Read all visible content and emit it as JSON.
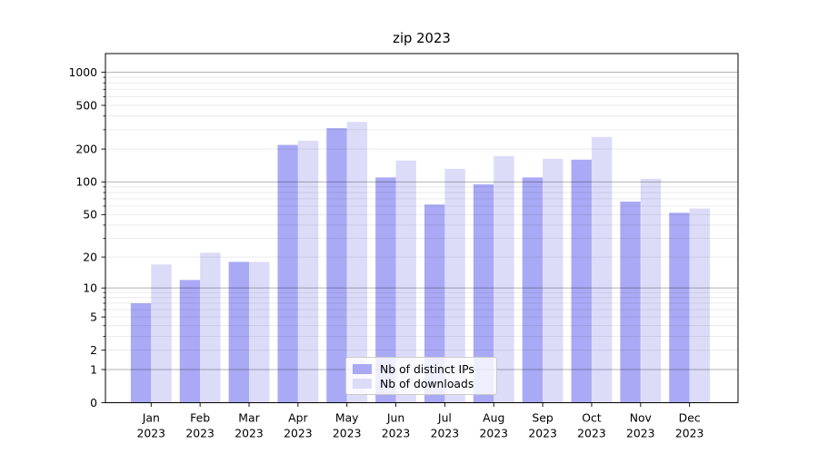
{
  "chart_data": {
    "type": "bar",
    "title": "zip 2023",
    "categories": [
      [
        "Jan",
        "2023"
      ],
      [
        "Feb",
        "2023"
      ],
      [
        "Mar",
        "2023"
      ],
      [
        "Apr",
        "2023"
      ],
      [
        "May",
        "2023"
      ],
      [
        "Jun",
        "2023"
      ],
      [
        "Jul",
        "2023"
      ],
      [
        "Aug",
        "2023"
      ],
      [
        "Sep",
        "2023"
      ],
      [
        "Oct",
        "2023"
      ],
      [
        "Nov",
        "2023"
      ],
      [
        "Dec",
        "2023"
      ]
    ],
    "series": [
      {
        "name": "Nb of distinct IPs",
        "color": "#a9a9f5",
        "values": [
          7,
          12,
          18,
          218,
          310,
          110,
          62,
          95,
          110,
          160,
          66,
          52
        ]
      },
      {
        "name": "Nb of downloads",
        "color": "#dcdcf9",
        "values": [
          17,
          22,
          18,
          238,
          353,
          157,
          132,
          172,
          163,
          258,
          107,
          57
        ]
      }
    ],
    "y_scale": "log1p",
    "y_ticks": [
      0,
      1,
      2,
      5,
      10,
      20,
      50,
      100,
      200,
      500,
      1000
    ],
    "ylim": [
      0,
      1480
    ],
    "xlabel": "",
    "ylabel": "",
    "grid": true,
    "minor_grid": true,
    "legend_position": "lower center"
  },
  "colors": {
    "major_grid": "rgba(0,0,0,0.30)",
    "minor_grid": "rgba(0,0,0,0.085)",
    "spine": "#000000"
  }
}
